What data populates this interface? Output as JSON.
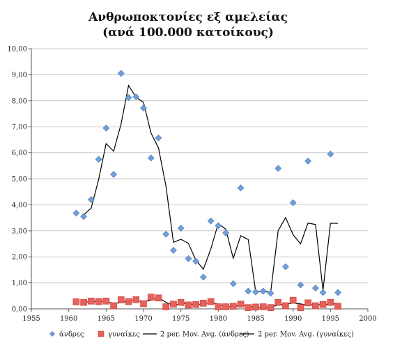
{
  "chart_data": {
    "type": "scatter",
    "title": "Ανθρωποκτονίες εξ αμελείας",
    "subtitle": "(ανά 100.000 κατοίκους)",
    "xlabel": "",
    "ylabel": "",
    "xlim": [
      1955,
      2000
    ],
    "ylim": [
      0,
      10
    ],
    "x_ticks": [
      1955,
      1960,
      1965,
      1970,
      1975,
      1980,
      1985,
      1990,
      1995,
      2000
    ],
    "y_ticks": [
      "0,00",
      "1,00",
      "2,00",
      "3,00",
      "4,00",
      "5,00",
      "6,00",
      "7,00",
      "8,00",
      "9,00",
      "10,00"
    ],
    "grid": "horizontal",
    "legend_position": "bottom",
    "series": [
      {
        "name": "άνδρες",
        "marker": "diamond",
        "color": "#6f9fd8",
        "x": [
          1961,
          1962,
          1963,
          1964,
          1965,
          1966,
          1967,
          1968,
          1969,
          1970,
          1971,
          1972,
          1973,
          1974,
          1975,
          1976,
          1977,
          1978,
          1979,
          1980,
          1981,
          1982,
          1983,
          1984,
          1985,
          1986,
          1987,
          1988,
          1989,
          1990,
          1991,
          1992,
          1993,
          1994,
          1995,
          1996
        ],
        "y": [
          3.68,
          3.55,
          4.2,
          5.75,
          6.95,
          5.17,
          9.05,
          8.12,
          8.15,
          7.72,
          5.8,
          6.57,
          2.87,
          2.25,
          3.1,
          1.93,
          1.83,
          1.22,
          3.38,
          3.2,
          2.92,
          0.97,
          4.65,
          0.68,
          0.65,
          0.68,
          0.6,
          5.4,
          1.62,
          4.08,
          0.92,
          5.68,
          0.8,
          0.63,
          5.95,
          0.63
        ]
      },
      {
        "name": "γυναίκες",
        "marker": "square",
        "color": "#e8605a",
        "x": [
          1961,
          1962,
          1963,
          1964,
          1965,
          1966,
          1967,
          1968,
          1969,
          1970,
          1971,
          1972,
          1973,
          1974,
          1975,
          1976,
          1977,
          1978,
          1979,
          1980,
          1981,
          1982,
          1983,
          1984,
          1985,
          1986,
          1987,
          1988,
          1989,
          1990,
          1991,
          1992,
          1993,
          1994,
          1995,
          1996
        ],
        "y": [
          0.27,
          0.25,
          0.3,
          0.28,
          0.3,
          0.12,
          0.35,
          0.28,
          0.35,
          0.2,
          0.45,
          0.42,
          0.08,
          0.18,
          0.25,
          0.15,
          0.17,
          0.22,
          0.28,
          0.08,
          0.08,
          0.1,
          0.18,
          0.05,
          0.07,
          0.08,
          0.05,
          0.25,
          0.12,
          0.33,
          0.05,
          0.23,
          0.12,
          0.17,
          0.25,
          0.1
        ]
      }
    ],
    "trendlines": [
      {
        "name": "2 per. Mov. Avg. (άνδρες)",
        "type": "moving_average",
        "period": 2,
        "of_series": 0,
        "color": "#000000"
      },
      {
        "name": "2 per. Mov. Avg. (γυναίκες)",
        "type": "moving_average",
        "period": 2,
        "of_series": 1,
        "color": "#000000"
      }
    ]
  }
}
